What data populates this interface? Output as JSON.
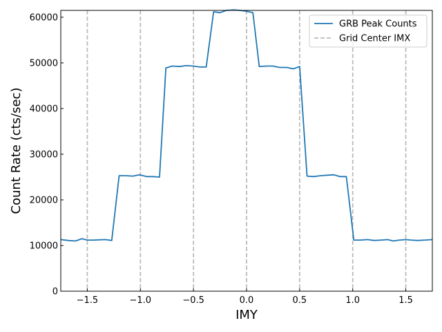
{
  "chart_data": {
    "type": "line",
    "title": "",
    "xlabel": "IMY",
    "ylabel": "Count Rate (cts/sec)",
    "xlim": [
      -1.75,
      1.75
    ],
    "ylim": [
      0,
      61500
    ],
    "x_ticks": [
      -1.5,
      -1.0,
      -0.5,
      0.0,
      0.5,
      1.0,
      1.5
    ],
    "x_tick_labels": [
      "−1.5",
      "−1.0",
      "−0.5",
      "0.0",
      "0.5",
      "1.0",
      "1.5"
    ],
    "y_ticks": [
      0,
      10000,
      20000,
      30000,
      40000,
      50000,
      60000
    ],
    "y_tick_labels": [
      "0",
      "10000",
      "20000",
      "30000",
      "40000",
      "50000",
      "60000"
    ],
    "grid": false,
    "legend_position": "top-right",
    "series": [
      {
        "name": "GRB Peak Counts",
        "color": "#1f77b4",
        "style": "solid",
        "x": [
          -1.75,
          -1.68,
          -1.61,
          -1.55,
          -1.5,
          -1.44,
          -1.38,
          -1.33,
          -1.27,
          -1.2,
          -1.14,
          -1.07,
          -1.01,
          -0.94,
          -0.88,
          -0.82,
          -0.76,
          -0.7,
          -0.63,
          -0.57,
          -0.5,
          -0.44,
          -0.38,
          -0.31,
          -0.25,
          -0.19,
          -0.12,
          -0.06,
          0.0,
          0.06,
          0.12,
          0.19,
          0.25,
          0.31,
          0.38,
          0.44,
          0.5,
          0.57,
          0.63,
          0.7,
          0.76,
          0.82,
          0.88,
          0.94,
          1.01,
          1.07,
          1.14,
          1.2,
          1.27,
          1.33,
          1.38,
          1.44,
          1.5,
          1.55,
          1.61,
          1.68,
          1.75
        ],
        "y": [
          11300,
          11100,
          11000,
          11500,
          11200,
          11200,
          11250,
          11300,
          11100,
          25300,
          25300,
          25200,
          25500,
          25100,
          25100,
          25000,
          48900,
          49300,
          49200,
          49400,
          49300,
          49100,
          49100,
          61200,
          61000,
          61500,
          61600,
          61500,
          61300,
          61000,
          49200,
          49300,
          49300,
          49000,
          49000,
          48700,
          49200,
          25200,
          25100,
          25300,
          25400,
          25500,
          25100,
          25100,
          11200,
          11200,
          11300,
          11100,
          11200,
          11300,
          11000,
          11200,
          11300,
          11200,
          11100,
          11200,
          11300
        ]
      },
      {
        "name": "Grid Center IMX",
        "color": "#bbbbbb",
        "style": "dashed",
        "vlines": [
          -1.5,
          -1.0,
          -0.5,
          0.0,
          0.5,
          1.0,
          1.5
        ]
      }
    ]
  }
}
